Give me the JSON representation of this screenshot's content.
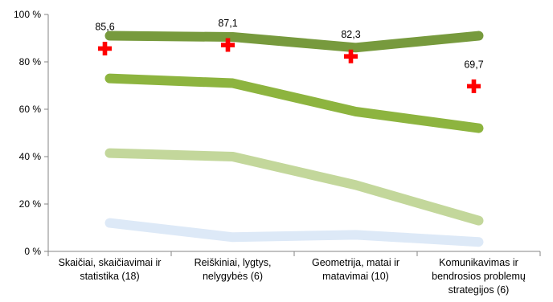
{
  "chart_data": {
    "type": "line",
    "categories": [
      [
        "Skaičiai, skaičiavimai ir",
        "statistika (18)"
      ],
      [
        "Reiškiniai, lygtys,",
        "nelygybės (6)"
      ],
      [
        "Geometrija, matai ir",
        "matavimai (10)"
      ],
      [
        "Komunikavimas ir",
        "bendrosios problemų",
        "strategijos (6)"
      ]
    ],
    "series": [
      {
        "color": "#779a3d",
        "values": [
          91,
          90.5,
          86,
          91
        ]
      },
      {
        "color": "#8db43f",
        "values": [
          73,
          71,
          59,
          52
        ]
      },
      {
        "color": "#c3d79b",
        "values": [
          41.5,
          40,
          28,
          13
        ]
      },
      {
        "color": "#dde9f7",
        "values": [
          12,
          6,
          7,
          4
        ]
      }
    ],
    "markers": {
      "symbol": "cross",
      "color": "#ff0000",
      "values": [
        85.6,
        87.1,
        82.3,
        69.7
      ],
      "labels": [
        "85,6",
        "87,1",
        "82,3",
        "69,7"
      ]
    },
    "ylim": [
      0,
      100
    ],
    "yticks": [
      0,
      20,
      40,
      60,
      80,
      100
    ],
    "ytick_labels": [
      "0 %",
      "20 %",
      "40 %",
      "60 %",
      "80 %",
      "100 %"
    ],
    "grid": false,
    "axis_color": "#868686"
  }
}
